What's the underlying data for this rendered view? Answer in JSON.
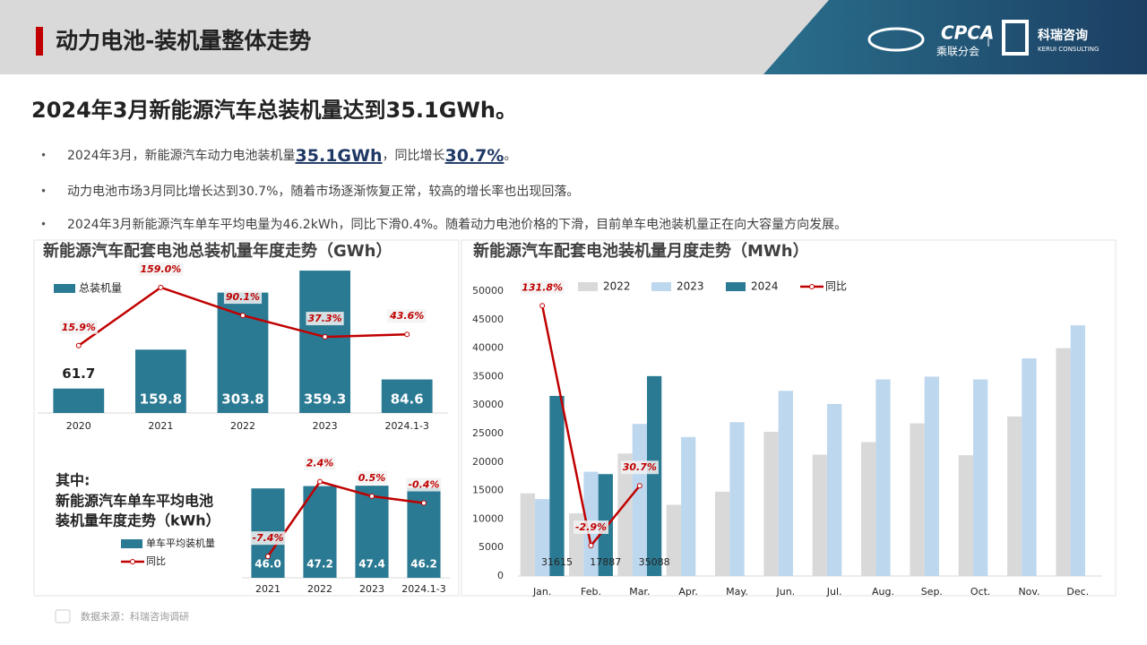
{
  "header": {
    "title": "动力电池-装机量整体走势",
    "logo1": "CPCA",
    "logo1_sub": "乘联分会",
    "logo2": "科瑞咨询",
    "logo2_sub": "KERUI CONSULTING"
  },
  "headline": "2024年3月新能源汽车总装机量达到35.1GWh。",
  "bullets": [
    [
      "2024年3月，新能源汽车动力电池装机量",
      "35.1GWh",
      "，同比增长",
      "30.7%",
      "。"
    ],
    [
      "动力电池市场3月同比增长达到30.7%，随着市场逐渐恢复正常，较高的增长率也出现回落。"
    ],
    [
      "2024年3月新能源汽车单车平均电量为46.2kWh，同比下滑0.4%。随着动力电池价格的下滑，目前单车电池装机量正在向大容量方向发展。"
    ]
  ],
  "source": "数据来源：科瑞咨询调研",
  "chart_data": [
    {
      "type": "combo",
      "title": "新能源汽车配套电池总装机量年度走势（GWh）",
      "categories": [
        "2020",
        "2021",
        "2022",
        "2023",
        "2024.1-3"
      ],
      "ylim": [
        0,
        364
      ],
      "y2lim": [
        -150,
        205
      ],
      "series": [
        {
          "name": "总装机量",
          "color": "#2b7a93",
          "data_labels": true,
          "values": [
            61.7,
            159.8,
            303.8,
            359.3,
            84.6
          ]
        },
        {
          "axis": "y2",
          "color": "#c00000",
          "values": [
            15.9,
            159.0,
            90.1,
            37.3,
            43.6
          ],
          "value_labels": [
            "15.9%",
            "159.0%",
            "90.1%",
            "37.3%",
            "43.6%"
          ]
        }
      ]
    },
    {
      "type": "combo",
      "subtitle": "其中:",
      "title": [
        "新能源汽车单车平均电池",
        "装机量年度走势（kWh）"
      ],
      "categories": [
        "2021",
        "2022",
        "2023",
        "2024.1-3"
      ],
      "ylim": [
        0,
        53
      ],
      "y2lim": [
        -10.2,
        3.3
      ],
      "series": [
        {
          "name": "单车平均装机量",
          "color": "#2b7a93",
          "data_labels": true,
          "values": [
            46.0,
            47.2,
            47.4,
            46.2
          ],
          "value_labels": [
            "46.0",
            "47.2",
            "47.4",
            "46.2"
          ]
        },
        {
          "name": "同比",
          "axis": "y2",
          "color": "#c00000",
          "values": [
            -7.4,
            2.4,
            0.5,
            -0.4
          ],
          "value_labels": [
            "-7.4%",
            "2.4%",
            "0.5%",
            "-0.4%"
          ]
        }
      ]
    },
    {
      "type": "combo",
      "title": "新能源汽车配套电池装机量月度走势（MWh）",
      "categories": [
        "Jan.",
        "Feb.",
        "Mar.",
        "Apr.",
        "May.",
        "Jun.",
        "Jul.",
        "Aug.",
        "Sep.",
        "Oct.",
        "Nov.",
        "Dec."
      ],
      "ylim": [
        0,
        50000
      ],
      "yticks": [
        0,
        5000,
        10000,
        15000,
        20000,
        25000,
        30000,
        35000,
        40000,
        45000,
        50000
      ],
      "y2lim": [
        -20,
        140
      ],
      "series": [
        {
          "name": "2022",
          "color": "#d9d9d9",
          "values": [
            14500,
            11000,
            21500,
            12500,
            14800,
            25300,
            21300,
            23500,
            26800,
            21200,
            28000,
            40000
          ]
        },
        {
          "name": "2023",
          "color": "#bdd7ee",
          "values": [
            13500,
            18300,
            26700,
            24400,
            27000,
            32500,
            30200,
            34500,
            35000,
            34500,
            38200,
            44000
          ]
        },
        {
          "name": "2024",
          "color": "#2b7a93",
          "data_labels": true,
          "values": [
            31615,
            17887,
            35088,
            null,
            null,
            null,
            null,
            null,
            null,
            null,
            null,
            null
          ]
        },
        {
          "name": "同比",
          "axis": "y2",
          "color": "#c00000",
          "values": [
            131.8,
            -2.9,
            30.7,
            null,
            null,
            null,
            null,
            null,
            null,
            null,
            null,
            null
          ],
          "value_labels": [
            "131.8%",
            "-2.9%",
            "30.7%",
            null,
            null,
            null,
            null,
            null,
            null,
            null,
            null,
            null
          ]
        }
      ]
    }
  ]
}
